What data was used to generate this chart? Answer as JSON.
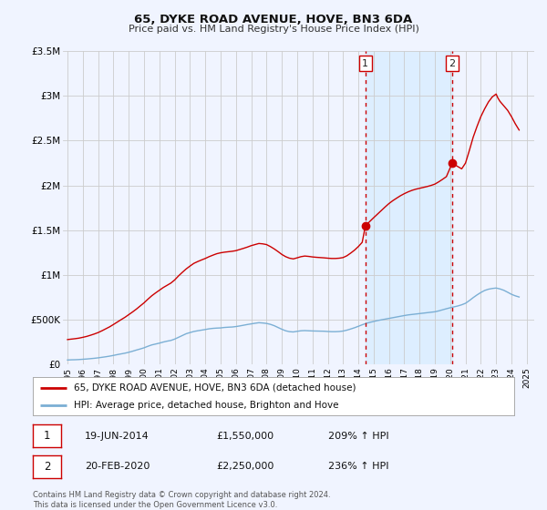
{
  "title": "65, DYKE ROAD AVENUE, HOVE, BN3 6DA",
  "subtitle": "Price paid vs. HM Land Registry's House Price Index (HPI)",
  "legend_line1": "65, DYKE ROAD AVENUE, HOVE, BN3 6DA (detached house)",
  "legend_line2": "HPI: Average price, detached house, Brighton and Hove",
  "footnote1": "Contains HM Land Registry data © Crown copyright and database right 2024.",
  "footnote2": "This data is licensed under the Open Government Licence v3.0.",
  "sale1_date": "19-JUN-2014",
  "sale1_price": "£1,550,000",
  "sale1_hpi": "209% ↑ HPI",
  "sale2_date": "20-FEB-2020",
  "sale2_price": "£2,250,000",
  "sale2_hpi": "236% ↑ HPI",
  "sale1_x": 2014.46,
  "sale1_y": 1550000,
  "sale2_x": 2020.13,
  "sale2_y": 2250000,
  "red_line_color": "#cc0000",
  "blue_line_color": "#7bafd4",
  "vline_color": "#cc0000",
  "background_color": "#f0f4ff",
  "shade_color": "#ddeeff",
  "grid_color": "#cccccc",
  "ylim": [
    0,
    3500000
  ],
  "xlim": [
    1994.7,
    2025.5
  ],
  "yticks": [
    0,
    500000,
    1000000,
    1500000,
    2000000,
    2500000,
    3000000,
    3500000
  ],
  "ytick_labels": [
    "£0",
    "£500K",
    "£1M",
    "£1.5M",
    "£2M",
    "£2.5M",
    "£3M",
    "£3.5M"
  ],
  "xticks": [
    1995,
    1996,
    1997,
    1998,
    1999,
    2000,
    2001,
    2002,
    2003,
    2004,
    2005,
    2006,
    2007,
    2008,
    2009,
    2010,
    2011,
    2012,
    2013,
    2014,
    2015,
    2016,
    2017,
    2018,
    2019,
    2020,
    2021,
    2022,
    2023,
    2024,
    2025
  ]
}
